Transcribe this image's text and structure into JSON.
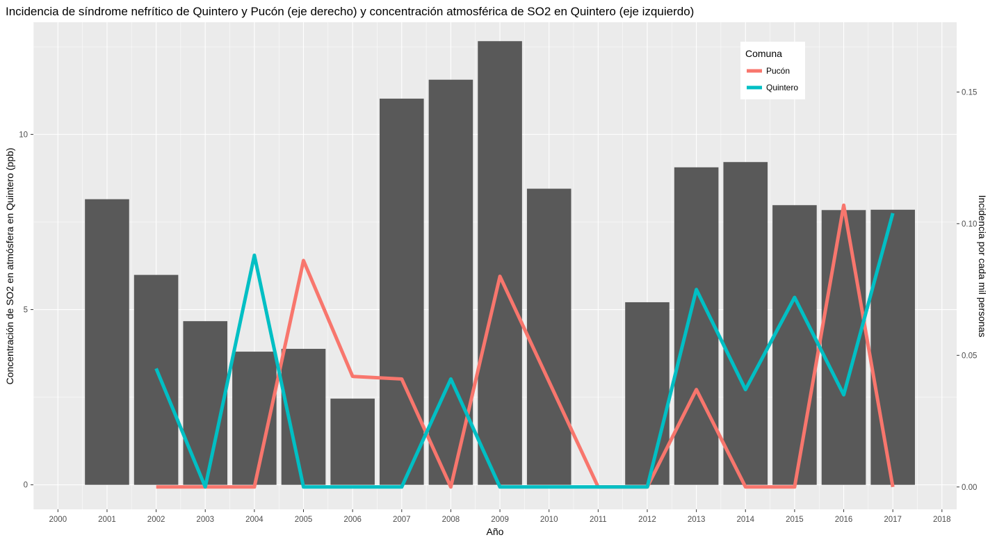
{
  "chart_data": {
    "type": "bar",
    "title": "Incidencia de síndrome nefrítico de Quintero y Pucón (eje derecho) y concentración atmosférica de SO2 en Quintero (eje izquierdo)",
    "xlabel": "Año",
    "ylabel_left": "Concentración de SO2 en atmósfera en Quintero (ppb)",
    "ylabel_right": "Incidencia por cada mil personas",
    "x_ticks": [
      "2000",
      "2001",
      "2002",
      "2003",
      "2004",
      "2005",
      "2006",
      "2007",
      "2008",
      "2009",
      "2010",
      "2011",
      "2012",
      "2013",
      "2014",
      "2015",
      "2016",
      "2017",
      "2018"
    ],
    "xlim": [
      1999.5,
      2018.3
    ],
    "ylim_left": [
      -0.7,
      13.2
    ],
    "y_ticks_left": [
      "0",
      "5",
      "10"
    ],
    "ylim_right": [
      -0.0085,
      0.1765
    ],
    "y_ticks_right": [
      "0.00",
      "0.05",
      "0.10",
      "0.15"
    ],
    "grid": true,
    "bars": {
      "years": [
        2001,
        2002,
        2003,
        2004,
        2005,
        2006,
        2007,
        2008,
        2009,
        2010,
        2012,
        2013,
        2014,
        2015,
        2016,
        2017
      ],
      "values": [
        8.15,
        5.99,
        4.67,
        3.8,
        3.88,
        2.46,
        11.02,
        11.56,
        12.66,
        8.45,
        5.21,
        9.06,
        9.21,
        7.98,
        7.84,
        7.85
      ],
      "color": "#595959"
    },
    "series": [
      {
        "name": "Pucón",
        "color": "#F8766D",
        "x": [
          2002,
          2003,
          2004,
          2005,
          2006,
          2007,
          2008,
          2009,
          2010,
          2011,
          2012,
          2013,
          2014,
          2015,
          2016,
          2017
        ],
        "y": [
          0.0,
          0.0,
          0.0,
          0.086,
          0.042,
          0.041,
          0.0,
          0.08,
          0.04,
          0.0,
          0.0,
          0.037,
          0.0,
          0.0,
          0.107,
          0.0
        ]
      },
      {
        "name": "Quintero",
        "color": "#00BFC4",
        "x": [
          2002,
          2003,
          2004,
          2005,
          2006,
          2007,
          2008,
          2009,
          2010,
          2011,
          2012,
          2013,
          2014,
          2015,
          2016,
          2017
        ],
        "y": [
          0.045,
          0.0,
          0.088,
          0.0,
          0.0,
          0.0,
          0.041,
          0.0,
          0.0,
          0.0,
          0.0,
          0.075,
          0.037,
          0.072,
          0.035,
          0.104
        ]
      }
    ],
    "legend": {
      "title": "Comuna",
      "position": "top-right",
      "entries": [
        "Pucón",
        "Quintero"
      ]
    }
  }
}
